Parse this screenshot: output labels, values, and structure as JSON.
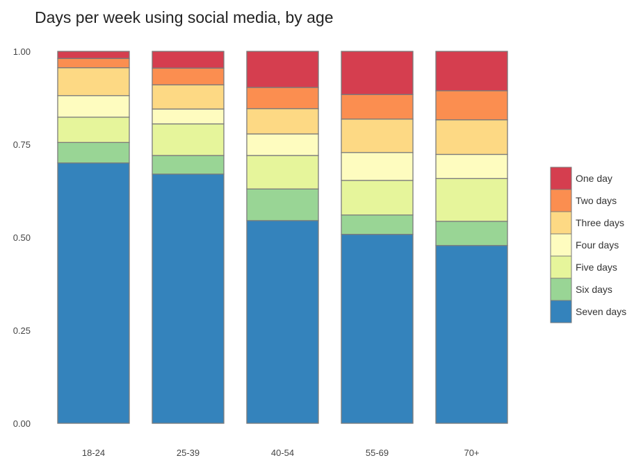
{
  "chart_data": {
    "type": "bar",
    "stacked": true,
    "title": "Days per week using social media, by age",
    "xlabel": "",
    "ylabel": "",
    "ylim": [
      0,
      1
    ],
    "y_ticks": [
      "0.00",
      "0.25",
      "0.50",
      "0.75",
      "1.00"
    ],
    "y_tick_values": [
      0,
      0.25,
      0.5,
      0.75,
      1.0
    ],
    "categories": [
      "18-24",
      "25-39",
      "40-54",
      "55-69",
      "70+"
    ],
    "grid": false,
    "legend_position": "right",
    "series": [
      {
        "name": "Seven days",
        "color": "#3483bc",
        "values": [
          0.7,
          0.67,
          0.545,
          0.508,
          0.478
        ]
      },
      {
        "name": "Six days",
        "color": "#99d595",
        "values": [
          0.055,
          0.05,
          0.085,
          0.052,
          0.065
        ]
      },
      {
        "name": "Five days",
        "color": "#e6f59b",
        "values": [
          0.068,
          0.085,
          0.09,
          0.093,
          0.115
        ]
      },
      {
        "name": "Four days",
        "color": "#fefcbf",
        "values": [
          0.058,
          0.04,
          0.058,
          0.075,
          0.065
        ]
      },
      {
        "name": "Three days",
        "color": "#fdd984",
        "values": [
          0.075,
          0.065,
          0.068,
          0.09,
          0.093
        ]
      },
      {
        "name": "Two days",
        "color": "#fb8e50",
        "values": [
          0.025,
          0.045,
          0.057,
          0.066,
          0.078
        ]
      },
      {
        "name": "One day",
        "color": "#d53e4f",
        "values": [
          0.019,
          0.045,
          0.097,
          0.116,
          0.106
        ]
      }
    ],
    "legend_order": [
      "One day",
      "Two days",
      "Three days",
      "Four days",
      "Five days",
      "Six days",
      "Seven days"
    ]
  }
}
